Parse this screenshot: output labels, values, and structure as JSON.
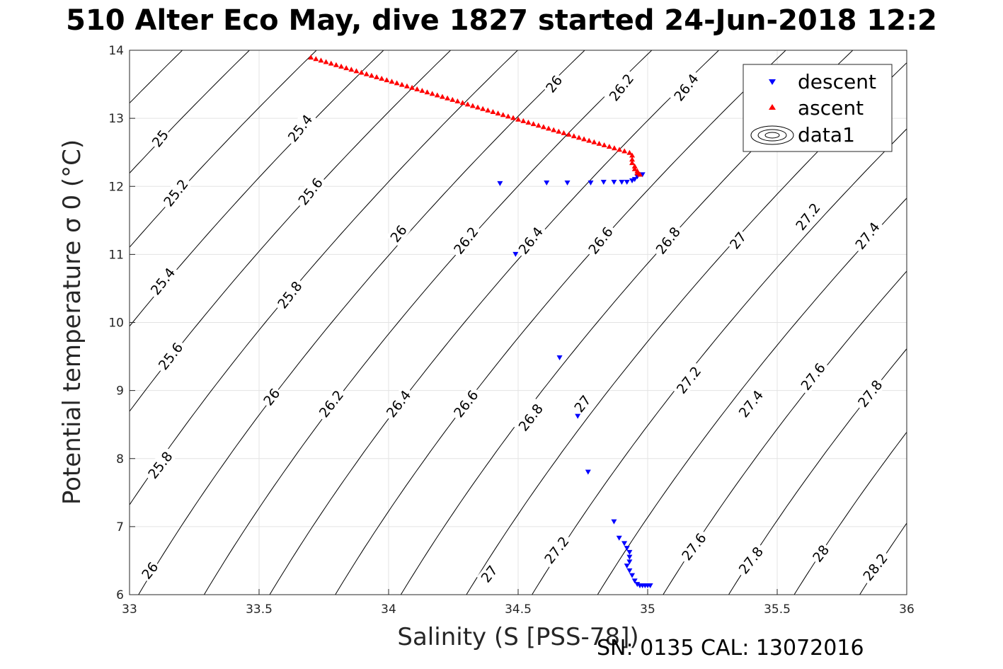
{
  "title": "510 Alter Eco May, dive 1827 started 24-Jun-2018 12:2",
  "footer": "SN: 0135  CAL: 13072016",
  "chart_data": {
    "type": "scatter",
    "xlabel": "Salinity (S [PSS-78])",
    "ylabel": "Potential temperature σ 0 (°C)",
    "xlim": [
      33,
      36
    ],
    "ylim": [
      6,
      14
    ],
    "xticks": [
      33,
      33.5,
      34,
      34.5,
      35,
      35.5,
      36
    ],
    "xtick_labels": [
      "33",
      "33.5",
      "34",
      "34.5",
      "35",
      "35.5",
      "36"
    ],
    "yticks": [
      6,
      7,
      8,
      9,
      10,
      11,
      12,
      13,
      14
    ],
    "ytick_labels": [
      "6",
      "7",
      "8",
      "9",
      "10",
      "11",
      "12",
      "13",
      "14"
    ],
    "grid": true,
    "legend": {
      "placement": "top-right",
      "entries": [
        "descent",
        "ascent",
        "data1"
      ]
    },
    "contour_levels": [
      "25",
      "25.2",
      "25.4",
      "25.6",
      "25.8",
      "26",
      "26.2",
      "26.4",
      "26.6",
      "26.8",
      "27",
      "27.2",
      "27.4",
      "27.6",
      "27.8",
      "28",
      "28.2"
    ],
    "contour_label_positions": [
      {
        "text": "25",
        "s": 33.12,
        "t": 12.7
      },
      {
        "text": "25.2",
        "s": 33.18,
        "t": 11.9
      },
      {
        "text": "25.4",
        "s": 33.13,
        "t": 10.6
      },
      {
        "text": "25.6",
        "s": 33.16,
        "t": 9.5
      },
      {
        "text": "25.8",
        "s": 33.12,
        "t": 7.9
      },
      {
        "text": "26",
        "s": 33.08,
        "t": 6.35
      },
      {
        "text": "25.4",
        "s": 33.66,
        "t": 12.85
      },
      {
        "text": "25.6",
        "s": 33.7,
        "t": 11.92
      },
      {
        "text": "25.8",
        "s": 33.62,
        "t": 10.4
      },
      {
        "text": "26",
        "s": 33.55,
        "t": 8.9
      },
      {
        "text": "26.2",
        "s": 33.78,
        "t": 8.8
      },
      {
        "text": "26.4",
        "s": 34.04,
        "t": 8.8
      },
      {
        "text": "26.6",
        "s": 34.3,
        "t": 8.8
      },
      {
        "text": "26.8",
        "s": 34.55,
        "t": 8.6
      },
      {
        "text": "27",
        "s": 34.75,
        "t": 8.8
      },
      {
        "text": "27.2",
        "s": 35.16,
        "t": 9.15
      },
      {
        "text": "27.4",
        "s": 35.4,
        "t": 8.8
      },
      {
        "text": "27.6",
        "s": 35.64,
        "t": 9.2
      },
      {
        "text": "27.8",
        "s": 35.86,
        "t": 8.95
      },
      {
        "text": "26",
        "s": 34.04,
        "t": 11.3
      },
      {
        "text": "26.2",
        "s": 34.3,
        "t": 11.2
      },
      {
        "text": "26.4",
        "s": 34.55,
        "t": 11.2
      },
      {
        "text": "26.6",
        "s": 34.82,
        "t": 11.2
      },
      {
        "text": "26.8",
        "s": 35.08,
        "t": 11.2
      },
      {
        "text": "27",
        "s": 35.35,
        "t": 11.2
      },
      {
        "text": "27.2",
        "s": 35.62,
        "t": 11.55
      },
      {
        "text": "27.4",
        "s": 35.85,
        "t": 11.27
      },
      {
        "text": "26",
        "s": 34.64,
        "t": 13.5
      },
      {
        "text": "26.2",
        "s": 34.9,
        "t": 13.45
      },
      {
        "text": "26.4",
        "s": 35.15,
        "t": 13.45
      },
      {
        "text": "27",
        "s": 34.39,
        "t": 6.3
      },
      {
        "text": "27.2",
        "s": 34.65,
        "t": 6.65
      },
      {
        "text": "27.6",
        "s": 35.18,
        "t": 6.7
      },
      {
        "text": "27.8",
        "s": 35.4,
        "t": 6.5
      },
      {
        "text": "28",
        "s": 35.67,
        "t": 6.6
      },
      {
        "text": "28.2",
        "s": 35.88,
        "t": 6.4
      }
    ],
    "series": [
      {
        "name": "descent",
        "marker": "triangle-down",
        "color": "#0000ff",
        "points": [
          [
            34.98,
            12.17
          ],
          [
            34.96,
            12.14
          ],
          [
            34.95,
            12.1
          ],
          [
            34.94,
            12.08
          ],
          [
            34.92,
            12.06
          ],
          [
            34.9,
            12.06
          ],
          [
            34.87,
            12.06
          ],
          [
            34.83,
            12.06
          ],
          [
            34.78,
            12.05
          ],
          [
            34.69,
            12.05
          ],
          [
            34.61,
            12.05
          ],
          [
            34.43,
            12.04
          ],
          [
            34.49,
            11.0
          ],
          [
            34.66,
            9.48
          ],
          [
            34.73,
            8.62
          ],
          [
            34.77,
            7.8
          ],
          [
            34.87,
            7.07
          ],
          [
            34.89,
            6.83
          ],
          [
            34.91,
            6.75
          ],
          [
            34.92,
            6.68
          ],
          [
            34.93,
            6.62
          ],
          [
            34.93,
            6.55
          ],
          [
            34.93,
            6.48
          ],
          [
            34.92,
            6.42
          ],
          [
            34.93,
            6.35
          ],
          [
            34.94,
            6.28
          ],
          [
            34.95,
            6.2
          ],
          [
            34.96,
            6.15
          ],
          [
            34.97,
            6.13
          ],
          [
            34.98,
            6.13
          ],
          [
            34.99,
            6.13
          ],
          [
            35.0,
            6.13
          ],
          [
            35.01,
            6.13
          ]
        ]
      },
      {
        "name": "ascent",
        "marker": "triangle-up",
        "color": "#ff0000",
        "start": [
          33.7,
          13.9
        ],
        "end": [
          34.93,
          12.5
        ],
        "count": 64,
        "tail": [
          [
            34.94,
            12.46
          ],
          [
            34.94,
            12.4
          ],
          [
            34.94,
            12.35
          ],
          [
            34.95,
            12.3
          ],
          [
            34.95,
            12.26
          ],
          [
            34.96,
            12.23
          ],
          [
            34.96,
            12.2
          ],
          [
            34.97,
            12.18
          ]
        ]
      }
    ]
  }
}
